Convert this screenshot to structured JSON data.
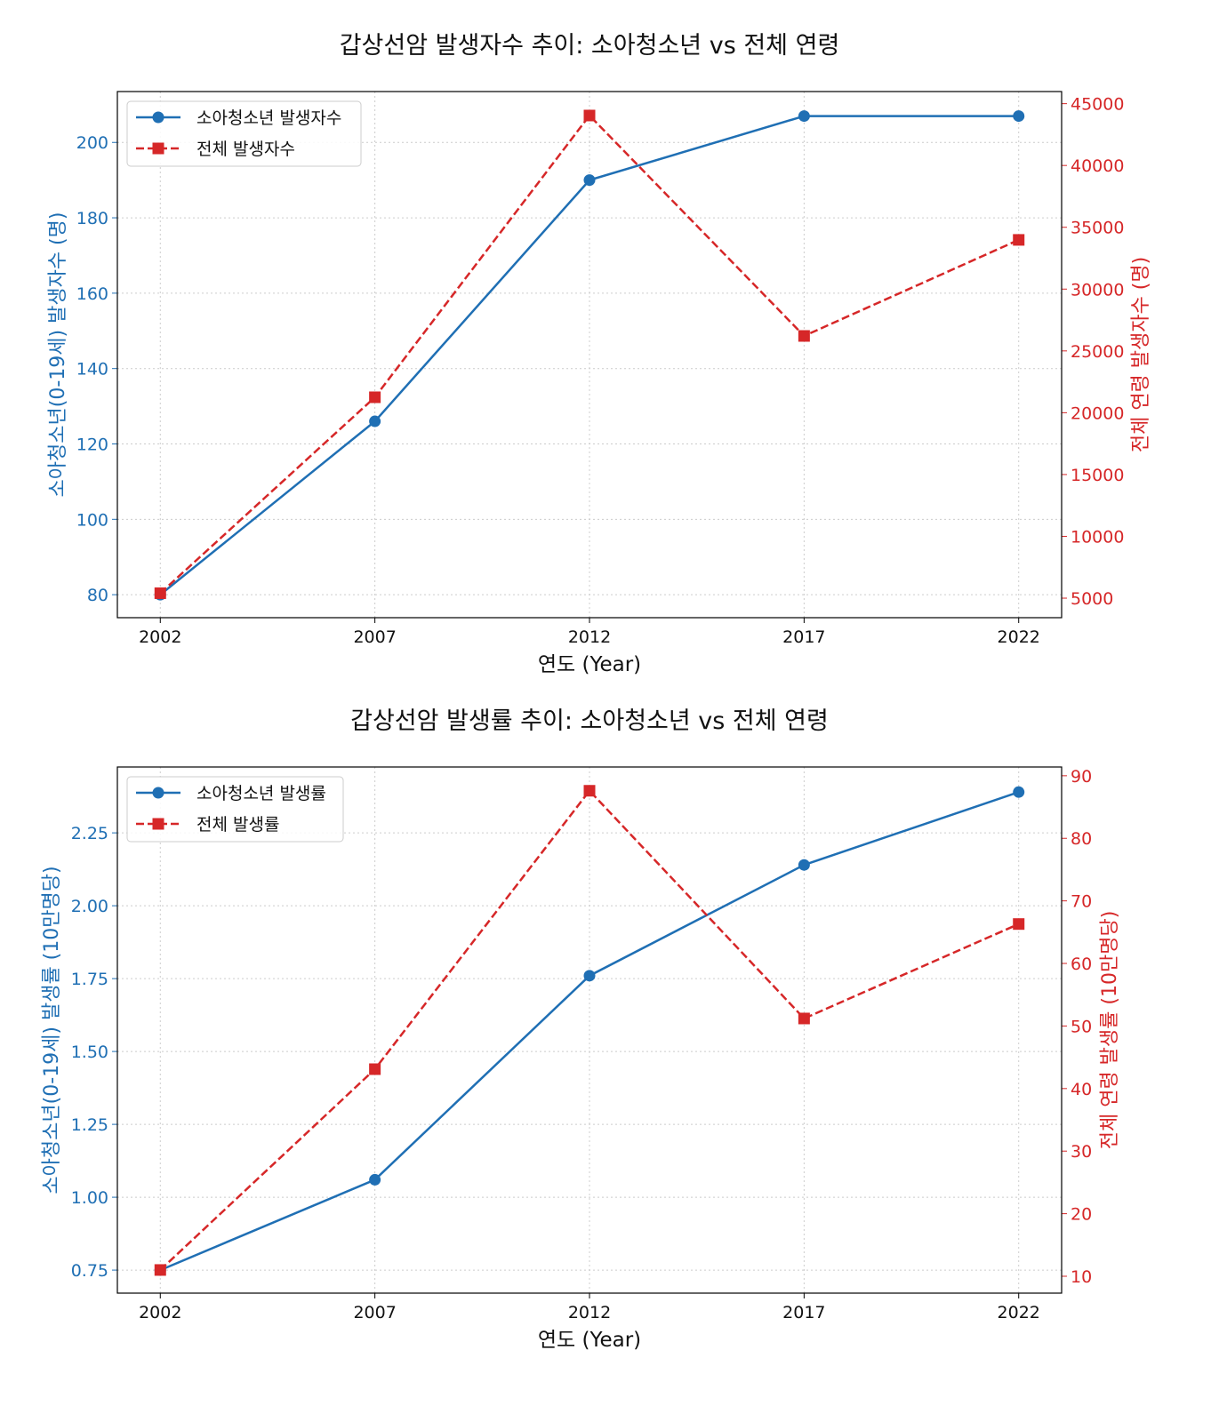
{
  "chart_data": [
    {
      "type": "line",
      "title": "갑상선암 발생자수 추이: 소아청소년 vs 전체 연령",
      "xlabel": "연도 (Year)",
      "ylabel": "소아청소년(0-19세) 발생자수 (명)",
      "y2label": "전체 연령 발생자수 (명)",
      "x": [
        2002,
        2007,
        2012,
        2017,
        2022
      ],
      "xlim": [
        2001,
        2023
      ],
      "ylim": [
        73.9,
        213.5
      ],
      "y2lim": [
        3420,
        45980
      ],
      "yticks": [
        80,
        100,
        120,
        140,
        160,
        180,
        200
      ],
      "y2ticks": [
        5000,
        10000,
        15000,
        20000,
        25000,
        30000,
        35000,
        40000,
        45000
      ],
      "ytick_format": "int",
      "grid": true,
      "legend_placement": "upper-left",
      "series": [
        {
          "name": "소아청소년 발생자수",
          "axis": "left",
          "color": "#1f6fb4",
          "marker": "circle",
          "linestyle": "solid",
          "values": [
            80,
            126,
            190,
            207,
            207
          ]
        },
        {
          "name": "전체 발생자수",
          "axis": "right",
          "color": "#d62728",
          "marker": "square",
          "linestyle": "dashed",
          "values": [
            5400,
            21250,
            44040,
            26210,
            33980
          ]
        }
      ]
    },
    {
      "type": "line",
      "title": "갑상선암 발생률 추이: 소아청소년 vs 전체 연령",
      "xlabel": "연도 (Year)",
      "ylabel": "소아청소년(0-19세) 발생률 (10만명당)",
      "y2label": "전체 연령 발생률 (10만명당)",
      "x": [
        2002,
        2007,
        2012,
        2017,
        2022
      ],
      "xlim": [
        2001,
        2023
      ],
      "ylim": [
        0.671,
        2.476
      ],
      "y2lim": [
        7.3,
        91.4
      ],
      "yticks": [
        0.75,
        1.0,
        1.25,
        1.5,
        1.75,
        2.0,
        2.25
      ],
      "y2ticks": [
        10,
        20,
        30,
        40,
        50,
        60,
        70,
        80,
        90
      ],
      "ytick_format": "2dp",
      "grid": true,
      "legend_placement": "upper-left",
      "series": [
        {
          "name": "소아청소년 발생률",
          "axis": "left",
          "color": "#1f6fb4",
          "marker": "circle",
          "linestyle": "solid",
          "values": [
            0.75,
            1.06,
            1.76,
            2.14,
            2.39
          ]
        },
        {
          "name": "전체 발생률",
          "axis": "right",
          "color": "#d62728",
          "marker": "square",
          "linestyle": "dashed",
          "values": [
            11.0,
            43.1,
            87.6,
            51.2,
            66.3
          ]
        }
      ]
    }
  ]
}
